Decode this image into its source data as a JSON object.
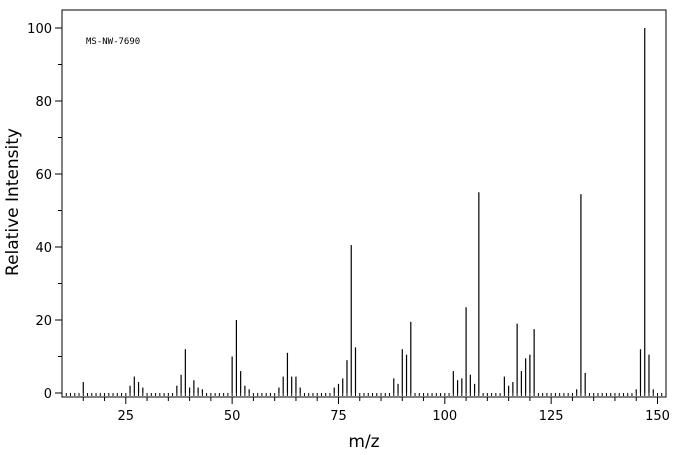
{
  "chart_data": {
    "type": "bar",
    "annotation": "MS-NW-7690",
    "xlabel": "m/z",
    "ylabel": "Relative Intensity",
    "xlim": [
      10,
      152
    ],
    "ylim": [
      0,
      100
    ],
    "x_ticks": [
      "25",
      "50",
      "75",
      "100",
      "125",
      "150"
    ],
    "y_ticks": [
      "0",
      "20",
      "40",
      "60",
      "80",
      "100"
    ],
    "grid": false,
    "legend": "none",
    "series": [
      {
        "mz": [
          15,
          26,
          27,
          28,
          29,
          37,
          38,
          39,
          40,
          41,
          42,
          43,
          50,
          51,
          52,
          53,
          54,
          61,
          62,
          63,
          64,
          65,
          66,
          74,
          75,
          76,
          77,
          78,
          79,
          88,
          89,
          90,
          91,
          92,
          102,
          103,
          104,
          105,
          106,
          107,
          108,
          114,
          115,
          116,
          117,
          118,
          119,
          120,
          121,
          131,
          132,
          133,
          145,
          146,
          147,
          148,
          149
        ],
        "intensity": [
          3,
          2,
          4.5,
          3,
          1.5,
          2,
          5,
          12,
          1.5,
          3.5,
          1.5,
          1,
          10,
          20,
          6,
          2,
          1,
          1.5,
          4.5,
          11,
          4.5,
          4.5,
          1.5,
          1.5,
          2.5,
          4,
          9,
          40.5,
          12.5,
          4,
          2.5,
          12,
          10.5,
          19.5,
          6,
          3.5,
          4,
          23.5,
          5,
          2.5,
          55,
          4.5,
          2,
          3,
          19,
          6,
          9.5,
          10.5,
          17.5,
          1,
          54.5,
          5.5,
          1,
          12,
          100,
          10.5,
          1
        ]
      }
    ],
    "colors": {
      "axis": "#000000",
      "bars": "#000000",
      "background": "#ffffff"
    }
  }
}
